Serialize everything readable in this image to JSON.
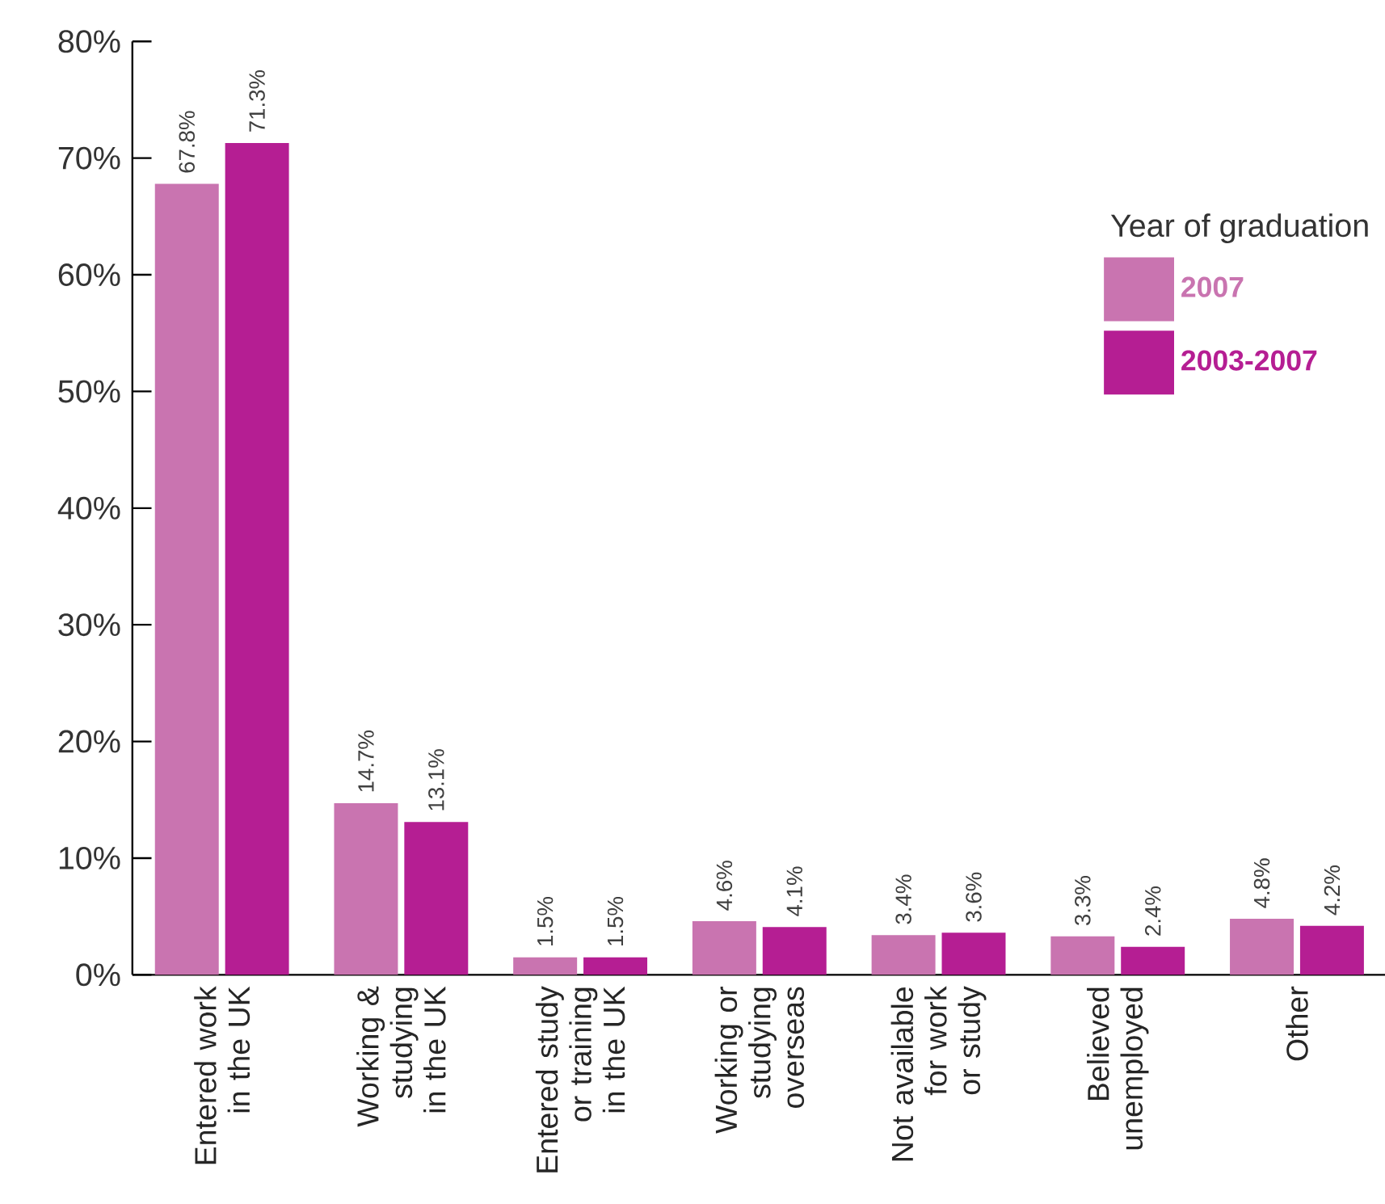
{
  "chart_data": {
    "type": "bar",
    "categories": [
      "Entered work in the UK",
      "Working & studying in the UK",
      "Entered study or training in the UK",
      "Working or studying overseas",
      "Not available for work or study",
      "Believed unemployed",
      "Other"
    ],
    "series": [
      {
        "name": "2007",
        "color": "#c974b0",
        "values": [
          67.8,
          14.7,
          1.5,
          4.6,
          3.4,
          3.3,
          4.8
        ],
        "value_labels": [
          "67.8%",
          "14.7%",
          "1.5%",
          "4.6%",
          "3.4%",
          "3.3%",
          "4.8%"
        ]
      },
      {
        "name": "2003-2007",
        "color": "#b51e93",
        "values": [
          71.3,
          13.1,
          1.5,
          4.1,
          3.6,
          2.4,
          4.2
        ],
        "value_labels": [
          "71.3%",
          "13.1%",
          "1.5%",
          "4.1%",
          "3.6%",
          "2.4%",
          "4.2%"
        ]
      }
    ],
    "legend_title": "Year of graduation",
    "legend": "top right",
    "grid": false,
    "ylim": [
      0,
      80
    ],
    "yticks": [
      {
        "value": 0,
        "label": "0%"
      },
      {
        "value": 10,
        "label": "10%"
      },
      {
        "value": 20,
        "label": "20%"
      },
      {
        "value": 30,
        "label": "30%"
      },
      {
        "value": 40,
        "label": "40%"
      },
      {
        "value": 50,
        "label": "50%"
      },
      {
        "value": 60,
        "label": "60%"
      },
      {
        "value": 70,
        "label": "70%"
      },
      {
        "value": 80,
        "label": "80%"
      }
    ]
  }
}
